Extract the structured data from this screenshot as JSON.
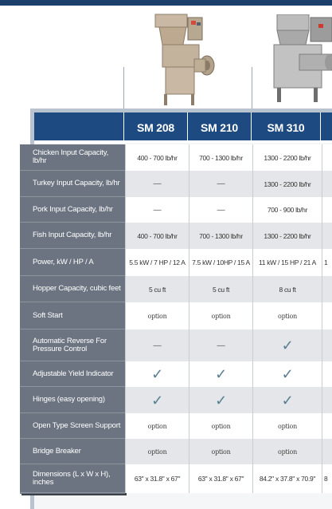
{
  "colors": {
    "header_blue": "#1e4a82",
    "label_gray": "#6b7480",
    "check_color": "#5a7f95",
    "top_bar": "#1c3f6b"
  },
  "models": [
    "SM 208",
    "SM 210",
    "SM 310",
    ""
  ],
  "rows": [
    {
      "label": "Chicken Input Capacity, lb/hr",
      "values": [
        "400 - 700 lb/hr",
        "700 - 1300 lb/hr",
        "1300 - 2200 lb/hr",
        ""
      ]
    },
    {
      "label": "Turkey Input Capacity, lb/hr",
      "values": [
        "—",
        "—",
        "1300 - 2200 lb/hr",
        ""
      ]
    },
    {
      "label": "Pork Input Capacity, lb/hr",
      "values": [
        "—",
        "—",
        "700 - 900 lb/hr",
        ""
      ]
    },
    {
      "label": "Fish Input Capacity, lb/hr",
      "values": [
        "400 - 700 lb/hr",
        "700 - 1300 lb/hr",
        "1300 - 2200 lb/hr",
        ""
      ]
    },
    {
      "label": "Power, kW / HP / A",
      "values": [
        "5.5 kW / 7 HP / 12 A",
        "7.5 kW / 10HP / 15 A",
        "11 kW / 15 HP / 21 A",
        "1"
      ]
    },
    {
      "label": "Hopper Capacity, cubic feet",
      "values": [
        "5 cu ft",
        "5 cu ft",
        "8 cu ft",
        ""
      ]
    },
    {
      "label": "Soft Start",
      "values": [
        "option",
        "option",
        "option",
        ""
      ]
    },
    {
      "label": "Automatic Reverse For Pressure Control",
      "values": [
        "—",
        "—",
        "✓",
        ""
      ]
    },
    {
      "label": "Adjustable Yield Indicator",
      "values": [
        "✓",
        "✓",
        "✓",
        ""
      ]
    },
    {
      "label": "Hinges (easy opening)",
      "values": [
        "✓",
        "✓",
        "✓",
        ""
      ]
    },
    {
      "label": "Open Type Screen Support",
      "values": [
        "option",
        "option",
        "option",
        ""
      ]
    },
    {
      "label": "Bridge Breaker",
      "values": [
        "option",
        "option",
        "option",
        ""
      ]
    },
    {
      "label": "Dimensions (L x W x H), inches",
      "values": [
        "63\" x 31.8\" x 67\"",
        "63\" x 31.8\" x 67\"",
        "84.2\" x 37.8\" x 70.9\"",
        "8"
      ]
    }
  ]
}
